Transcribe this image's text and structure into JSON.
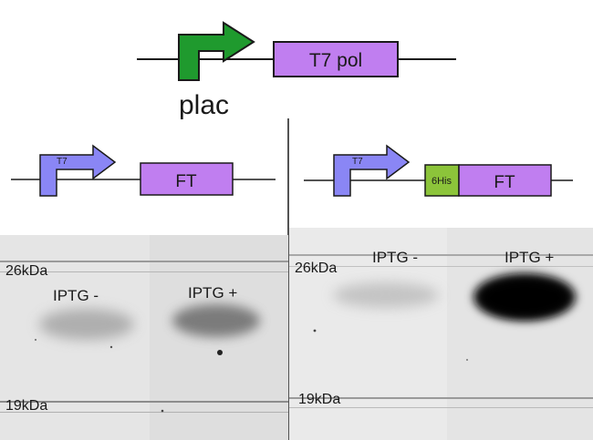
{
  "top_construct": {
    "promoter_label": "plac",
    "gene_label": "T7 pol",
    "promoter_color": "#1f9a2e",
    "gene_color": "#c07ef0"
  },
  "left_construct": {
    "promoter_label": "T7",
    "gene_label": "FT",
    "promoter_color": "#8a86f5",
    "gene_color": "#c07ef0"
  },
  "right_construct": {
    "promoter_label": "T7",
    "tag_label": "6His",
    "gene_label": "FT",
    "promoter_color": "#8a86f5",
    "tag_color": "#8cc43a",
    "gene_color": "#c07ef0"
  },
  "left_blot": {
    "marker_high": "26kDa",
    "marker_low": "19kDa",
    "lane1_label": "IPTG -",
    "lane2_label": "IPTG +"
  },
  "right_blot": {
    "marker_high": "26kDa",
    "marker_low": "19kDa",
    "lane1_label": "IPTG -",
    "lane2_label": "IPTG +"
  }
}
